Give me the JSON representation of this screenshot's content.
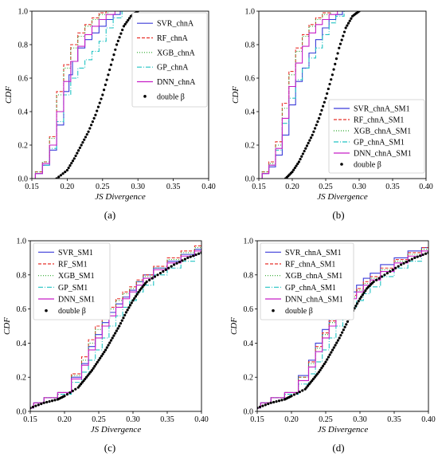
{
  "chart_data": [
    {
      "type": "line",
      "caption": "(a)",
      "xlabel": "JS Divergence",
      "ylabel": "CDF",
      "xlim": [
        0.15,
        0.4
      ],
      "ylim": [
        0.0,
        1.0
      ],
      "xticks": [
        "0.15",
        "0.20",
        "0.25",
        "0.30",
        "0.35",
        "0.40"
      ],
      "yticks": [
        "0.0",
        "0.2",
        "0.4",
        "0.6",
        "0.8",
        "1.0"
      ],
      "grid": false,
      "legend": "top-right",
      "series": [
        {
          "name": "SVR_chnA",
          "color": "#3b3bd9",
          "dash": "solid",
          "x": [
            0.15,
            0.16,
            0.17,
            0.18,
            0.19,
            0.2,
            0.205,
            0.21,
            0.22,
            0.23,
            0.24,
            0.25,
            0.26,
            0.27,
            0.28
          ],
          "y": [
            0.0,
            0.03,
            0.08,
            0.17,
            0.32,
            0.52,
            0.62,
            0.7,
            0.78,
            0.83,
            0.87,
            0.91,
            0.95,
            0.98,
            1.0
          ]
        },
        {
          "name": "RF_chnA",
          "color": "#e8302a",
          "dash": "4,2",
          "x": [
            0.15,
            0.16,
            0.17,
            0.18,
            0.19,
            0.2,
            0.21,
            0.22,
            0.23,
            0.24,
            0.25,
            0.26
          ],
          "y": [
            0.0,
            0.04,
            0.1,
            0.25,
            0.52,
            0.68,
            0.8,
            0.87,
            0.92,
            0.96,
            0.99,
            1.0
          ]
        },
        {
          "name": "XGB_chnA",
          "color": "#2aa82a",
          "dash": "1,2",
          "x": [
            0.15,
            0.16,
            0.17,
            0.18,
            0.19,
            0.2,
            0.21,
            0.22,
            0.23,
            0.24,
            0.25,
            0.265
          ],
          "y": [
            0.0,
            0.04,
            0.1,
            0.24,
            0.5,
            0.66,
            0.78,
            0.85,
            0.91,
            0.95,
            0.98,
            1.0
          ]
        },
        {
          "name": "GP_chnA",
          "color": "#22c4c4",
          "dash": "6,2,1,2",
          "x": [
            0.15,
            0.16,
            0.17,
            0.18,
            0.19,
            0.2,
            0.21,
            0.22,
            0.23,
            0.24,
            0.25,
            0.26,
            0.27,
            0.285
          ],
          "y": [
            0.0,
            0.03,
            0.08,
            0.18,
            0.34,
            0.5,
            0.6,
            0.66,
            0.71,
            0.76,
            0.82,
            0.9,
            0.96,
            1.0
          ]
        },
        {
          "name": "DNN_chnA",
          "color": "#c71fc7",
          "dash": "solid",
          "x": [
            0.15,
            0.16,
            0.17,
            0.18,
            0.19,
            0.2,
            0.21,
            0.22,
            0.23,
            0.24,
            0.25,
            0.26,
            0.275
          ],
          "y": [
            0.0,
            0.03,
            0.09,
            0.2,
            0.4,
            0.58,
            0.7,
            0.79,
            0.86,
            0.91,
            0.95,
            0.98,
            1.0
          ]
        },
        {
          "name": "double β",
          "color": "#000000",
          "dash": "dots",
          "x": [
            0.185,
            0.2,
            0.21,
            0.22,
            0.23,
            0.24,
            0.25,
            0.26,
            0.27,
            0.28,
            0.29,
            0.3
          ],
          "y": [
            0.0,
            0.05,
            0.12,
            0.2,
            0.28,
            0.38,
            0.5,
            0.65,
            0.8,
            0.91,
            0.97,
            1.0
          ]
        }
      ]
    },
    {
      "type": "line",
      "caption": "(b)",
      "xlabel": "JS Divergence",
      "ylabel": "CDF",
      "xlim": [
        0.15,
        0.4
      ],
      "ylim": [
        0.0,
        1.0
      ],
      "xticks": [
        "0.15",
        "0.20",
        "0.25",
        "0.30",
        "0.35",
        "0.40"
      ],
      "yticks": [
        "0.0",
        "0.2",
        "0.4",
        "0.6",
        "0.8",
        "1.0"
      ],
      "grid": false,
      "legend": "bottom-right",
      "series": [
        {
          "name": "SVR_chnA_SM1",
          "color": "#3b3bd9",
          "dash": "solid",
          "x": [
            0.15,
            0.16,
            0.17,
            0.18,
            0.19,
            0.2,
            0.21,
            0.22,
            0.23,
            0.24,
            0.25,
            0.26,
            0.27,
            0.28
          ],
          "y": [
            0.0,
            0.03,
            0.07,
            0.14,
            0.26,
            0.44,
            0.58,
            0.66,
            0.75,
            0.83,
            0.9,
            0.95,
            0.98,
            1.0
          ]
        },
        {
          "name": "RF_chnA_SM1",
          "color": "#e8302a",
          "dash": "4,2",
          "x": [
            0.15,
            0.16,
            0.17,
            0.18,
            0.19,
            0.2,
            0.21,
            0.22,
            0.23,
            0.24,
            0.25,
            0.265
          ],
          "y": [
            0.0,
            0.04,
            0.1,
            0.22,
            0.45,
            0.64,
            0.78,
            0.86,
            0.92,
            0.96,
            0.99,
            1.0
          ]
        },
        {
          "name": "XGB_chnA_SM1",
          "color": "#2aa82a",
          "dash": "1,2",
          "x": [
            0.15,
            0.16,
            0.17,
            0.18,
            0.19,
            0.2,
            0.21,
            0.22,
            0.23,
            0.24,
            0.25,
            0.265
          ],
          "y": [
            0.0,
            0.04,
            0.09,
            0.2,
            0.42,
            0.62,
            0.76,
            0.85,
            0.91,
            0.95,
            0.98,
            1.0
          ]
        },
        {
          "name": "GP_chnA_SM1",
          "color": "#22c4c4",
          "dash": "6,2,1,2",
          "x": [
            0.15,
            0.16,
            0.17,
            0.18,
            0.19,
            0.2,
            0.21,
            0.22,
            0.23,
            0.24,
            0.25,
            0.26,
            0.27,
            0.285
          ],
          "y": [
            0.0,
            0.03,
            0.08,
            0.17,
            0.33,
            0.48,
            0.59,
            0.66,
            0.72,
            0.78,
            0.86,
            0.93,
            0.97,
            1.0
          ]
        },
        {
          "name": "DNN_chnA_SM1",
          "color": "#c71fc7",
          "dash": "solid",
          "x": [
            0.15,
            0.16,
            0.17,
            0.18,
            0.19,
            0.2,
            0.21,
            0.22,
            0.23,
            0.24,
            0.25,
            0.26,
            0.275
          ],
          "y": [
            0.0,
            0.03,
            0.08,
            0.18,
            0.36,
            0.55,
            0.69,
            0.79,
            0.87,
            0.92,
            0.95,
            0.98,
            1.0
          ]
        },
        {
          "name": "double β",
          "color": "#000000",
          "dash": "dots",
          "x": [
            0.19,
            0.2,
            0.21,
            0.22,
            0.23,
            0.24,
            0.25,
            0.26,
            0.27,
            0.28,
            0.29,
            0.3
          ],
          "y": [
            0.0,
            0.04,
            0.1,
            0.18,
            0.26,
            0.36,
            0.48,
            0.62,
            0.78,
            0.9,
            0.97,
            1.0
          ]
        }
      ]
    },
    {
      "type": "line",
      "caption": "(c)",
      "xlabel": "JS Divergence",
      "ylabel": "CDF",
      "xlim": [
        0.15,
        0.4
      ],
      "ylim": [
        0.0,
        1.0
      ],
      "xticks": [
        "0.15",
        "0.20",
        "0.25",
        "0.30",
        "0.35",
        "0.40"
      ],
      "yticks": [
        "0.0",
        "0.2",
        "0.4",
        "0.6",
        "0.8",
        "1.0"
      ],
      "grid": false,
      "legend": "top-left",
      "series": [
        {
          "name": "SVR_SM1",
          "color": "#3b3bd9",
          "dash": "solid",
          "x": [
            0.15,
            0.16,
            0.18,
            0.2,
            0.22,
            0.23,
            0.24,
            0.25,
            0.26,
            0.27,
            0.28,
            0.29,
            0.3,
            0.31,
            0.32,
            0.34,
            0.36,
            0.38,
            0.4
          ],
          "y": [
            0.02,
            0.05,
            0.08,
            0.11,
            0.2,
            0.28,
            0.38,
            0.45,
            0.52,
            0.58,
            0.63,
            0.67,
            0.71,
            0.76,
            0.8,
            0.84,
            0.88,
            0.92,
            0.95
          ]
        },
        {
          "name": "RF_SM1",
          "color": "#e8302a",
          "dash": "4,2",
          "x": [
            0.15,
            0.16,
            0.18,
            0.2,
            0.22,
            0.23,
            0.24,
            0.25,
            0.26,
            0.27,
            0.28,
            0.29,
            0.3,
            0.31,
            0.32,
            0.34,
            0.36,
            0.38,
            0.4
          ],
          "y": [
            0.02,
            0.05,
            0.08,
            0.11,
            0.22,
            0.32,
            0.42,
            0.5,
            0.56,
            0.61,
            0.66,
            0.7,
            0.73,
            0.77,
            0.8,
            0.85,
            0.9,
            0.94,
            0.97
          ]
        },
        {
          "name": "XGB_SM1",
          "color": "#2aa82a",
          "dash": "1,2",
          "x": [
            0.15,
            0.16,
            0.18,
            0.2,
            0.22,
            0.23,
            0.24,
            0.25,
            0.26,
            0.27,
            0.28,
            0.29,
            0.3,
            0.31,
            0.32,
            0.34,
            0.36,
            0.38,
            0.4
          ],
          "y": [
            0.02,
            0.05,
            0.08,
            0.11,
            0.21,
            0.3,
            0.4,
            0.48,
            0.55,
            0.6,
            0.65,
            0.69,
            0.72,
            0.76,
            0.79,
            0.84,
            0.89,
            0.93,
            0.96
          ]
        },
        {
          "name": "GP_SM1",
          "color": "#22c4c4",
          "dash": "6,2,1,2",
          "x": [
            0.15,
            0.16,
            0.18,
            0.2,
            0.22,
            0.23,
            0.24,
            0.25,
            0.26,
            0.27,
            0.28,
            0.29,
            0.3,
            0.31,
            0.32,
            0.34,
            0.36,
            0.38,
            0.4
          ],
          "y": [
            0.02,
            0.05,
            0.08,
            0.1,
            0.17,
            0.23,
            0.3,
            0.36,
            0.43,
            0.5,
            0.56,
            0.61,
            0.65,
            0.7,
            0.74,
            0.8,
            0.84,
            0.88,
            0.92
          ]
        },
        {
          "name": "DNN_SM1",
          "color": "#c71fc7",
          "dash": "solid",
          "x": [
            0.15,
            0.16,
            0.18,
            0.2,
            0.22,
            0.23,
            0.24,
            0.25,
            0.26,
            0.27,
            0.28,
            0.29,
            0.3,
            0.31,
            0.32,
            0.34,
            0.36,
            0.38,
            0.4
          ],
          "y": [
            0.02,
            0.05,
            0.08,
            0.11,
            0.19,
            0.27,
            0.36,
            0.43,
            0.5,
            0.56,
            0.61,
            0.66,
            0.7,
            0.74,
            0.78,
            0.83,
            0.87,
            0.91,
            0.94
          ]
        },
        {
          "name": "double β",
          "color": "#000000",
          "dash": "dots",
          "x": [
            0.15,
            0.17,
            0.19,
            0.2,
            0.22,
            0.23,
            0.24,
            0.25,
            0.26,
            0.27,
            0.28,
            0.29,
            0.3,
            0.31,
            0.32,
            0.34,
            0.36,
            0.38,
            0.4
          ],
          "y": [
            0.02,
            0.05,
            0.07,
            0.09,
            0.14,
            0.19,
            0.24,
            0.3,
            0.36,
            0.43,
            0.5,
            0.58,
            0.65,
            0.71,
            0.76,
            0.81,
            0.86,
            0.9,
            0.93
          ]
        }
      ]
    },
    {
      "type": "line",
      "caption": "(d)",
      "xlabel": "JS Divergence",
      "ylabel": "CDF",
      "xlim": [
        0.15,
        0.4
      ],
      "ylim": [
        0.0,
        1.0
      ],
      "xticks": [
        "0.15",
        "0.20",
        "0.25",
        "0.30",
        "0.35",
        "0.40"
      ],
      "yticks": [
        "0.0",
        "0.2",
        "0.4",
        "0.6",
        "0.8",
        "1.0"
      ],
      "grid": false,
      "legend": "top-left",
      "series": [
        {
          "name": "SVR_chnA_SM1",
          "color": "#3b3bd9",
          "dash": "solid",
          "x": [
            0.15,
            0.16,
            0.18,
            0.2,
            0.22,
            0.23,
            0.24,
            0.25,
            0.26,
            0.27,
            0.28,
            0.29,
            0.3,
            0.31,
            0.32,
            0.34,
            0.36,
            0.38,
            0.4
          ],
          "y": [
            0.02,
            0.05,
            0.08,
            0.11,
            0.21,
            0.3,
            0.4,
            0.48,
            0.55,
            0.61,
            0.66,
            0.7,
            0.74,
            0.78,
            0.81,
            0.86,
            0.9,
            0.94,
            0.96
          ]
        },
        {
          "name": "RF_chnA_SM1",
          "color": "#e8302a",
          "dash": "4,2",
          "x": [
            0.15,
            0.16,
            0.18,
            0.2,
            0.22,
            0.23,
            0.24,
            0.25,
            0.26,
            0.27,
            0.28,
            0.29,
            0.3,
            0.31,
            0.32,
            0.34,
            0.36,
            0.38,
            0.4
          ],
          "y": [
            0.02,
            0.05,
            0.08,
            0.11,
            0.2,
            0.29,
            0.38,
            0.46,
            0.53,
            0.59,
            0.64,
            0.68,
            0.72,
            0.76,
            0.79,
            0.84,
            0.89,
            0.93,
            0.96
          ]
        },
        {
          "name": "XGB_chnA_SM1",
          "color": "#2aa82a",
          "dash": "1,2",
          "x": [
            0.15,
            0.16,
            0.18,
            0.2,
            0.22,
            0.23,
            0.24,
            0.25,
            0.26,
            0.27,
            0.28,
            0.29,
            0.3,
            0.31,
            0.32,
            0.34,
            0.36,
            0.38,
            0.4
          ],
          "y": [
            0.02,
            0.05,
            0.08,
            0.11,
            0.2,
            0.28,
            0.37,
            0.45,
            0.52,
            0.58,
            0.63,
            0.67,
            0.71,
            0.75,
            0.78,
            0.83,
            0.88,
            0.92,
            0.95
          ]
        },
        {
          "name": "GP_chnA_SM1",
          "color": "#22c4c4",
          "dash": "6,2,1,2",
          "x": [
            0.15,
            0.16,
            0.18,
            0.2,
            0.22,
            0.23,
            0.24,
            0.25,
            0.26,
            0.27,
            0.28,
            0.29,
            0.3,
            0.31,
            0.32,
            0.34,
            0.36,
            0.38,
            0.4
          ],
          "y": [
            0.02,
            0.05,
            0.08,
            0.1,
            0.16,
            0.22,
            0.29,
            0.36,
            0.43,
            0.5,
            0.56,
            0.61,
            0.65,
            0.69,
            0.73,
            0.79,
            0.84,
            0.88,
            0.92
          ]
        },
        {
          "name": "DNN_chnA_SM1",
          "color": "#c71fc7",
          "dash": "solid",
          "x": [
            0.15,
            0.16,
            0.18,
            0.2,
            0.22,
            0.23,
            0.24,
            0.25,
            0.26,
            0.27,
            0.28,
            0.29,
            0.3,
            0.31,
            0.32,
            0.34,
            0.36,
            0.38,
            0.4
          ],
          "y": [
            0.02,
            0.05,
            0.08,
            0.11,
            0.18,
            0.26,
            0.35,
            0.43,
            0.5,
            0.56,
            0.61,
            0.66,
            0.7,
            0.74,
            0.77,
            0.82,
            0.87,
            0.91,
            0.94
          ]
        },
        {
          "name": "double β",
          "color": "#000000",
          "dash": "dots",
          "x": [
            0.15,
            0.17,
            0.19,
            0.2,
            0.22,
            0.23,
            0.24,
            0.25,
            0.26,
            0.27,
            0.28,
            0.29,
            0.3,
            0.31,
            0.32,
            0.34,
            0.36,
            0.38,
            0.4
          ],
          "y": [
            0.02,
            0.05,
            0.07,
            0.09,
            0.13,
            0.18,
            0.23,
            0.29,
            0.36,
            0.43,
            0.51,
            0.59,
            0.66,
            0.72,
            0.76,
            0.81,
            0.86,
            0.9,
            0.93
          ]
        }
      ]
    }
  ]
}
